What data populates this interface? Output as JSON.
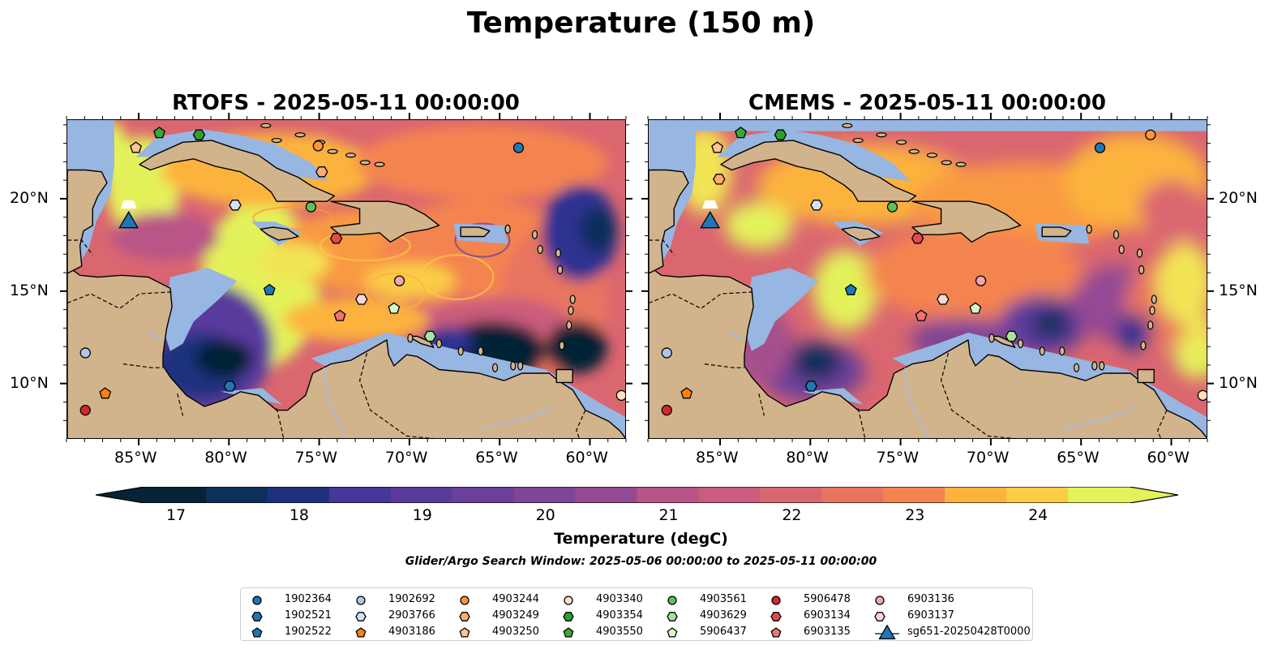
{
  "figure": {
    "title": "Temperature (150 m)",
    "panels": [
      {
        "id": "rtofs",
        "title": "RTOFS - 2025-05-11 00:00:00"
      },
      {
        "id": "cmems",
        "title": "CMEMS - 2025-05-11 00:00:00"
      }
    ],
    "lon_ticks": [
      "85°W",
      "80°W",
      "75°W",
      "70°W",
      "65°W",
      "60°W"
    ],
    "lat_ticks": [
      "20°N",
      "15°N",
      "10°N"
    ],
    "extent": {
      "lon": [
        -89,
        -58
      ],
      "lat": [
        7,
        24.3
      ]
    }
  },
  "colorbar": {
    "label": "Temperature (degC)",
    "ticks": [
      "17",
      "18",
      "19",
      "20",
      "21",
      "22",
      "23",
      "24"
    ],
    "range": [
      16.75,
      24.75
    ],
    "colors": [
      "#062435",
      "#0d2f5c",
      "#1e307c",
      "#2f3391",
      "#43379a",
      "#593b9c",
      "#6c3f9a",
      "#7f4597",
      "#934a93",
      "#a64f8d",
      "#b95487",
      "#ca5c7d",
      "#da6670",
      "#e87460",
      "#f4844f",
      "#f99a42",
      "#fcb33d",
      "#fbcc46",
      "#f2e455",
      "#e3f25a"
    ]
  },
  "search_window": "Glider/Argo Search Window: 2025-05-06 00:00:00 to 2025-05-11 00:00:00",
  "colors": {
    "land": "#d2b48c",
    "shelf": "#97b6e1",
    "deep": "#062435"
  },
  "legend": [
    {
      "label": "1902364",
      "marker": "circle",
      "color": "#1f77b4"
    },
    {
      "label": "1902521",
      "marker": "hexagon",
      "color": "#1f77b4"
    },
    {
      "label": "1902522",
      "marker": "pentagon",
      "color": "#1f77b4"
    },
    {
      "label": "1902692",
      "marker": "circle",
      "color": "#aec7e8"
    },
    {
      "label": "2903766",
      "marker": "hexagon",
      "color": "#cfe4f7"
    },
    {
      "label": "4903186",
      "marker": "pentagon",
      "color": "#ff7f0e"
    },
    {
      "label": "4903244",
      "marker": "circle",
      "color": "#ff9538"
    },
    {
      "label": "4903249",
      "marker": "hexagon",
      "color": "#ffad6b"
    },
    {
      "label": "4903250",
      "marker": "pentagon",
      "color": "#ffc493"
    },
    {
      "label": "4903340",
      "marker": "circle",
      "color": "#ffe0c0"
    },
    {
      "label": "4903354",
      "marker": "hexagon",
      "color": "#2ca02c"
    },
    {
      "label": "4903550",
      "marker": "pentagon",
      "color": "#39a839"
    },
    {
      "label": "4903561",
      "marker": "circle",
      "color": "#5bc25b"
    },
    {
      "label": "4903629",
      "marker": "hexagon",
      "color": "#a6e39e"
    },
    {
      "label": "5906437",
      "marker": "pentagon",
      "color": "#d4f7c9"
    },
    {
      "label": "5906478",
      "marker": "circle",
      "color": "#d62728"
    },
    {
      "label": "6903134",
      "marker": "hexagon",
      "color": "#e04a4a"
    },
    {
      "label": "6903135",
      "marker": "pentagon",
      "color": "#ee7373"
    },
    {
      "label": "6903136",
      "marker": "circle",
      "color": "#f4a6a6"
    },
    {
      "label": "6903137",
      "marker": "hexagon",
      "color": "#fdd5d5"
    },
    {
      "label": "sg651-20250428T0000",
      "marker": "triangle",
      "color": "#1f77b4"
    }
  ],
  "floats": [
    {
      "id": "1902364",
      "lon": -64.0,
      "lat": 22.8
    },
    {
      "id": "1902521",
      "lon": -80.0,
      "lat": 9.9
    },
    {
      "id": "1902522",
      "lon": -77.8,
      "lat": 15.1
    },
    {
      "id": "1902692",
      "lon": -88.0,
      "lat": 11.7
    },
    {
      "id": "2903766",
      "lon": -79.7,
      "lat": 19.7
    },
    {
      "id": "4903186",
      "lon": -86.9,
      "lat": 9.5
    },
    {
      "id": "4903244",
      "lon": -75.1,
      "lat": 22.9
    },
    {
      "id": "4903249",
      "lon": -74.9,
      "lat": 21.5
    },
    {
      "id": "4903250",
      "lon": -85.2,
      "lat": 22.8
    },
    {
      "id": "4903340",
      "lon": -58.3,
      "lat": 9.4
    },
    {
      "id": "4903354",
      "lon": -81.7,
      "lat": 23.5
    },
    {
      "id": "4903550",
      "lon": -83.9,
      "lat": 23.6
    },
    {
      "id": "4903561",
      "lon": -75.5,
      "lat": 19.6
    },
    {
      "id": "4903629",
      "lon": -68.9,
      "lat": 12.6
    },
    {
      "id": "5906437",
      "lon": -70.9,
      "lat": 14.1
    },
    {
      "id": "5906478",
      "lon": -88.0,
      "lat": 8.6
    },
    {
      "id": "6903134",
      "lon": -74.1,
      "lat": 17.9
    },
    {
      "id": "6903135",
      "lon": -73.9,
      "lat": 13.7
    },
    {
      "id": "6903136",
      "lon": -70.6,
      "lat": 15.6
    },
    {
      "id": "6903137",
      "lon": -72.7,
      "lat": 14.6
    }
  ],
  "floats_offset_panel": [
    {
      "id": "4903244",
      "lon": -61.2,
      "lat": 23.5
    },
    {
      "id": "4903249",
      "lon": -85.1,
      "lat": 21.1
    }
  ],
  "glider": {
    "id": "sg651-20250428T0000",
    "lon": -85.6,
    "lat": 18.9
  }
}
